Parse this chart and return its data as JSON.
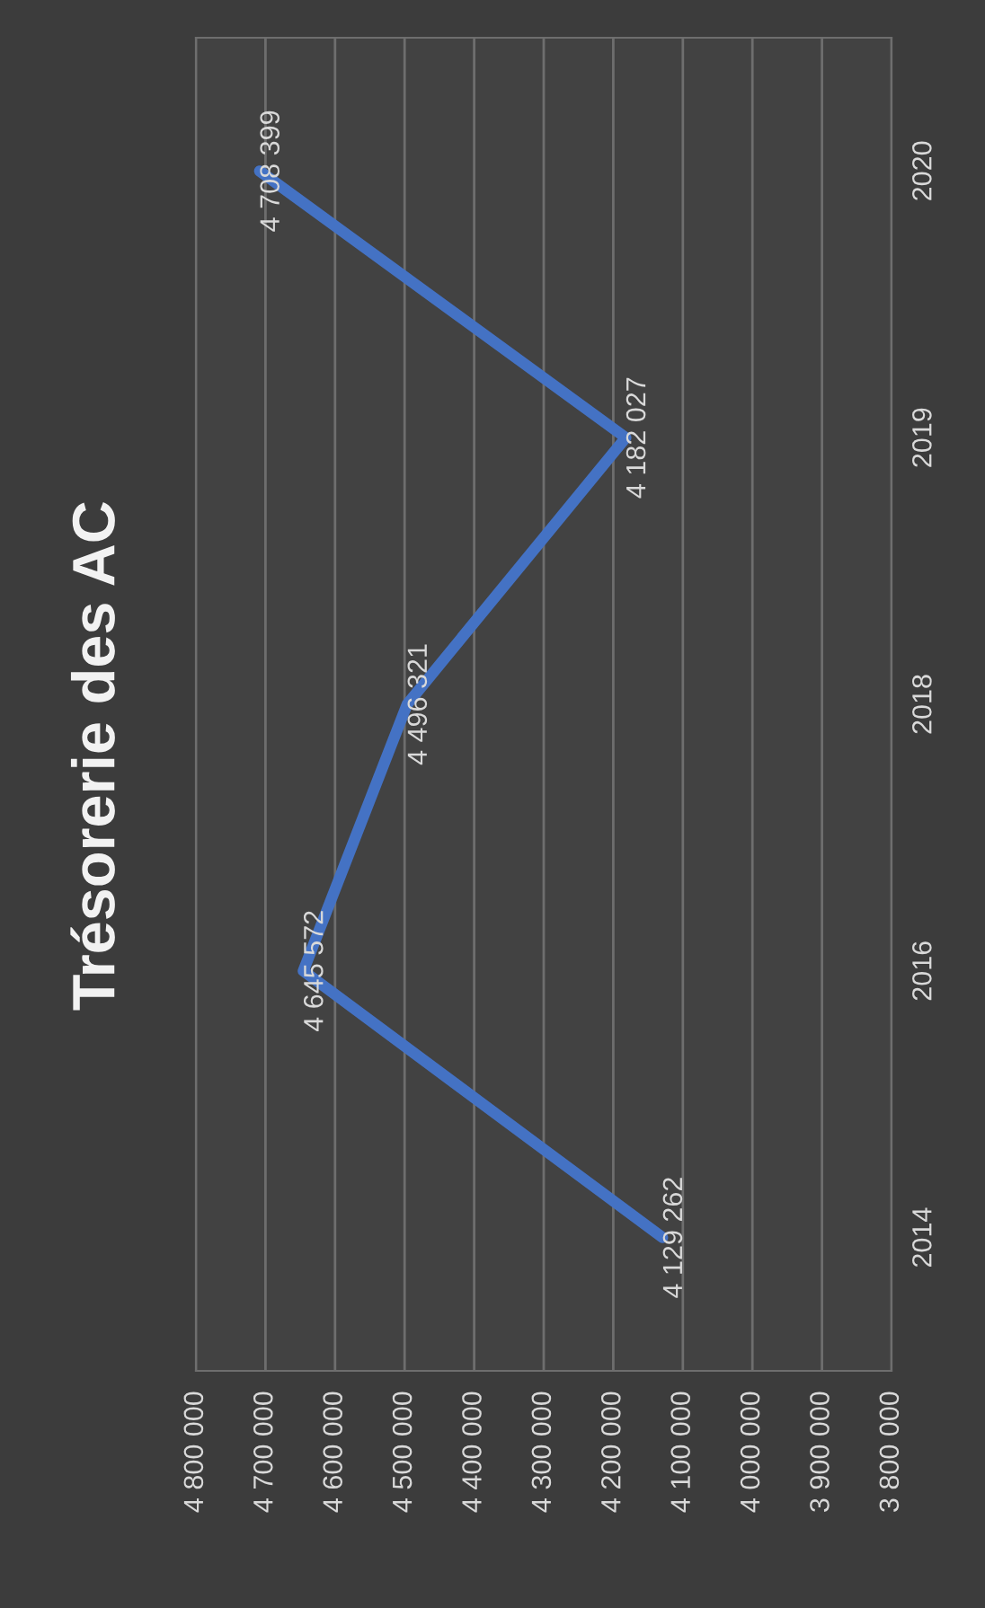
{
  "chart_data": {
    "type": "line",
    "title": "Trésorerie des AC",
    "orientation": "horizontal",
    "categories": [
      "2020",
      "2019",
      "2018",
      "2016",
      "2014"
    ],
    "series": [
      {
        "color": "#4472c4",
        "values": [
          4708399,
          4182027,
          4496321,
          4645572,
          4129262
        ],
        "value_labels": [
          "4 708 399",
          "4 182 027",
          "4 496 321",
          "4 645 572",
          "4 129 262"
        ]
      }
    ],
    "xlim": [
      4800000,
      3800000
    ],
    "xticks": [
      {
        "value": 4800000,
        "label": "4 800 000"
      },
      {
        "value": 4700000,
        "label": "4 700 000"
      },
      {
        "value": 4600000,
        "label": "4 600 000"
      },
      {
        "value": 4500000,
        "label": "4 500 000"
      },
      {
        "value": 4400000,
        "label": "4 400 000"
      },
      {
        "value": 4300000,
        "label": "4 300 000"
      },
      {
        "value": 4200000,
        "label": "4 200 000"
      },
      {
        "value": 4100000,
        "label": "4 100 000"
      },
      {
        "value": 4000000,
        "label": "4 000 000"
      },
      {
        "value": 3900000,
        "label": "3 900 000"
      },
      {
        "value": 3800000,
        "label": "3 800 000"
      }
    ],
    "grid": "x",
    "marker": "none",
    "line_style": "solid",
    "legend": false
  }
}
